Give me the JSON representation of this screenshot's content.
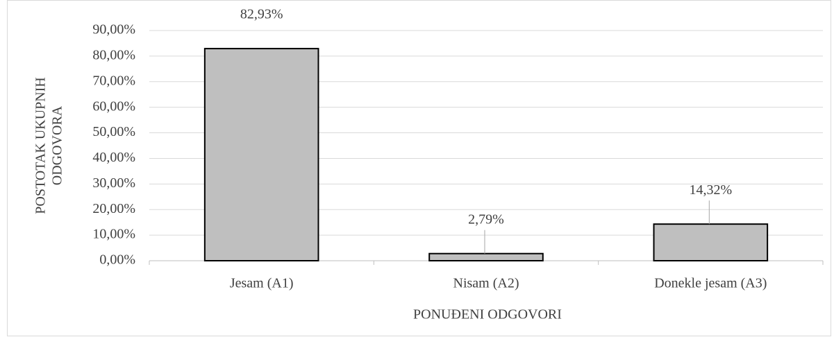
{
  "chart_data": {
    "type": "bar",
    "categories": [
      "Jesam (A1)",
      "Nisam (A2)",
      "Donekle jesam (A3)"
    ],
    "values": [
      82.93,
      2.79,
      14.32
    ],
    "value_labels": [
      "82,93%",
      "2,79%",
      "14,32%"
    ],
    "color": "#bfbfbf",
    "x_label": "PONUĐENI ODGOVORI",
    "y_label": [
      "POSTOTAK UKUPNIH",
      "ODGOVORA"
    ],
    "ylim": [
      0,
      90
    ],
    "yticks": [
      {
        "value": 0,
        "label": "0,00%"
      },
      {
        "value": 10,
        "label": "10,00%"
      },
      {
        "value": 20,
        "label": "20,00%"
      },
      {
        "value": 30,
        "label": "30,00%"
      },
      {
        "value": 40,
        "label": "40,00%"
      },
      {
        "value": 50,
        "label": "50,00%"
      },
      {
        "value": 60,
        "label": "60,00%"
      },
      {
        "value": 70,
        "label": "70,00%"
      },
      {
        "value": 80,
        "label": "80,00%"
      },
      {
        "value": 90,
        "label": "90,00%"
      }
    ],
    "grid": true
  }
}
